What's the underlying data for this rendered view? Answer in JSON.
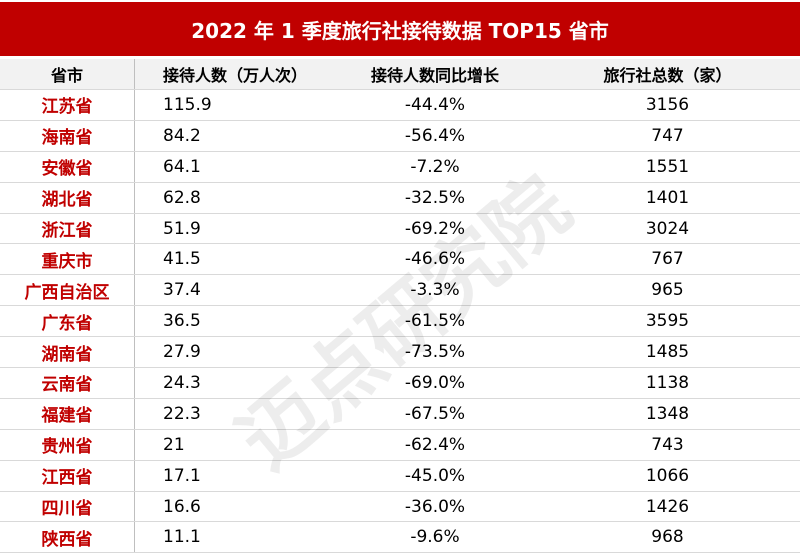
{
  "header": {
    "title": "2022 年 1 季度旅行社接待数据 TOP15 省市"
  },
  "table": {
    "columns": [
      "省市",
      "接待人数（万人次）",
      "接待人数同比增长",
      "旅行社总数（家）"
    ],
    "rows": [
      [
        "江苏省",
        "115.9",
        "-44.4%",
        "3156"
      ],
      [
        "海南省",
        "84.2",
        "-56.4%",
        "747"
      ],
      [
        "安徽省",
        "64.1",
        "-7.2%",
        "1551"
      ],
      [
        "湖北省",
        "62.8",
        "-32.5%",
        "1401"
      ],
      [
        "浙江省",
        "51.9",
        "-69.2%",
        "3024"
      ],
      [
        "重庆市",
        "41.5",
        "-46.6%",
        "767"
      ],
      [
        "广西自治区",
        "37.4",
        "-3.3%",
        "965"
      ],
      [
        "广东省",
        "36.5",
        "-61.5%",
        "3595"
      ],
      [
        "湖南省",
        "27.9",
        "-73.5%",
        "1485"
      ],
      [
        "云南省",
        "24.3",
        "-69.0%",
        "1138"
      ],
      [
        "福建省",
        "22.3",
        "-67.5%",
        "1348"
      ],
      [
        "贵州省",
        "21",
        "-62.4%",
        "743"
      ],
      [
        "江西省",
        "17.1",
        "-45.0%",
        "1066"
      ],
      [
        "四川省",
        "16.6",
        "-36.0%",
        "1426"
      ],
      [
        "陕西省",
        "11.1",
        "-9.6%",
        "968"
      ]
    ]
  },
  "watermark": "迈点研究院"
}
